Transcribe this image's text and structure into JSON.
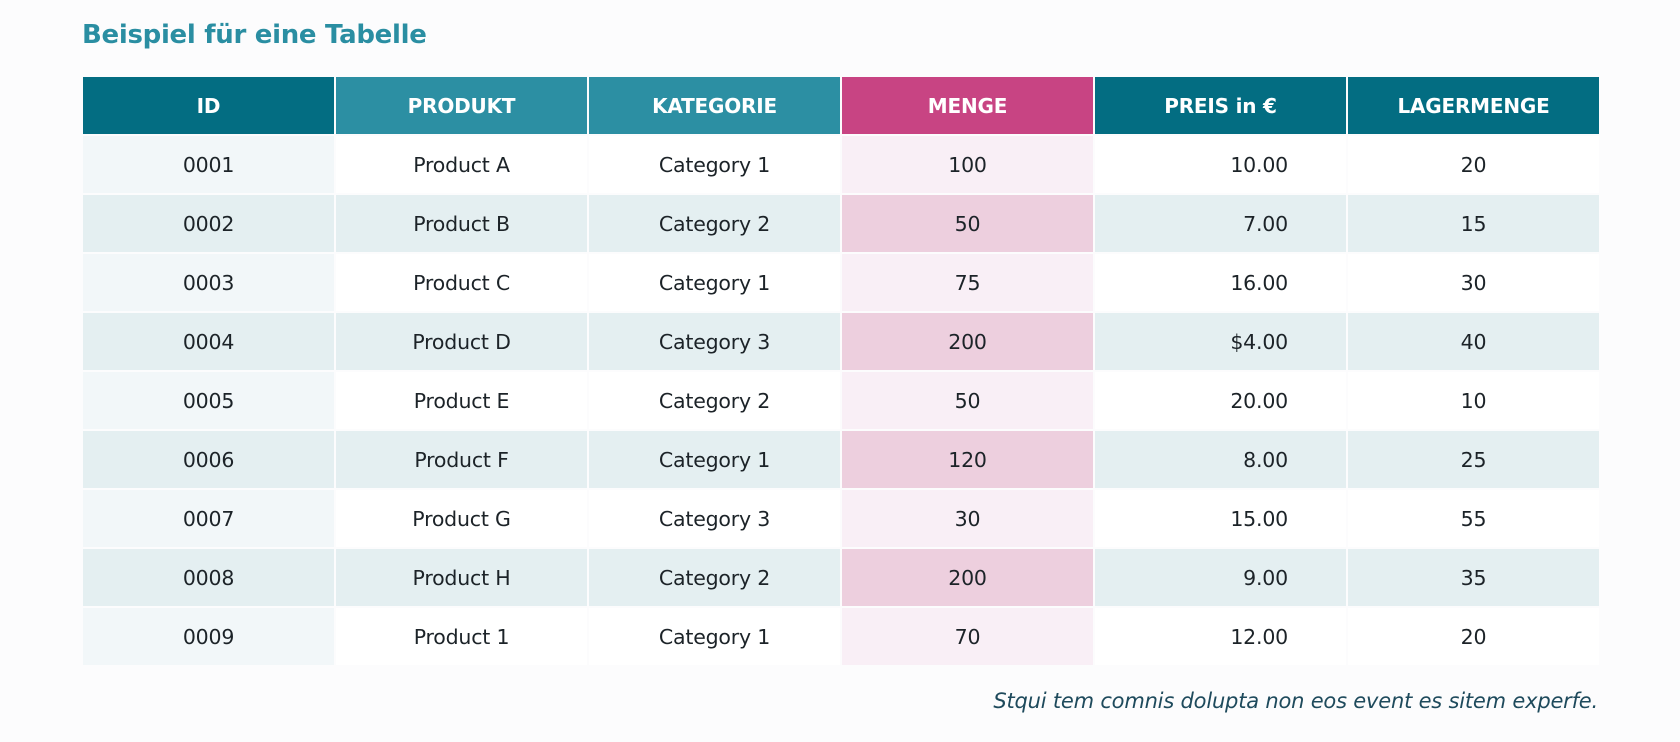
{
  "title": "Beispiel für eine Tabelle",
  "table": {
    "headers": [
      "ID",
      "PRODUKT",
      "KATEGORIE",
      "MENGE",
      "PREIS in €",
      "LAGERMENGE"
    ],
    "rows": [
      [
        "0001",
        "Product A",
        "Category 1",
        "100",
        "10.00",
        "20"
      ],
      [
        "0002",
        "Product B",
        "Category 2",
        "50",
        "7.00",
        "15"
      ],
      [
        "0003",
        "Product C",
        "Category 1",
        "75",
        "16.00",
        "30"
      ],
      [
        "0004",
        "Product D",
        "Category 3",
        "200",
        "$4.00",
        "40"
      ],
      [
        "0005",
        "Product E",
        "Category 2",
        "50",
        "20.00",
        "10"
      ],
      [
        "0006",
        "Product F",
        "Category 1",
        "120",
        "8.00",
        "25"
      ],
      [
        "0007",
        "Product G",
        "Category 3",
        "30",
        "15.00",
        "55"
      ],
      [
        "0008",
        "Product H",
        "Category 2",
        "200",
        "9.00",
        "35"
      ],
      [
        "0009",
        "Product 1",
        "Category 1",
        "70",
        "12.00",
        "20"
      ]
    ]
  },
  "footnote": "Stqui tem comnis dolupta non eos event es sitem experfe.",
  "colors": {
    "title": "#2a8ea2",
    "header_dark": "#036d82",
    "header_mid": "#2c8fa3",
    "header_highlight": "#c84483",
    "row_alt": "#e4eff1",
    "highlight_light": "#f9eff6",
    "highlight_alt": "#edcfde"
  }
}
